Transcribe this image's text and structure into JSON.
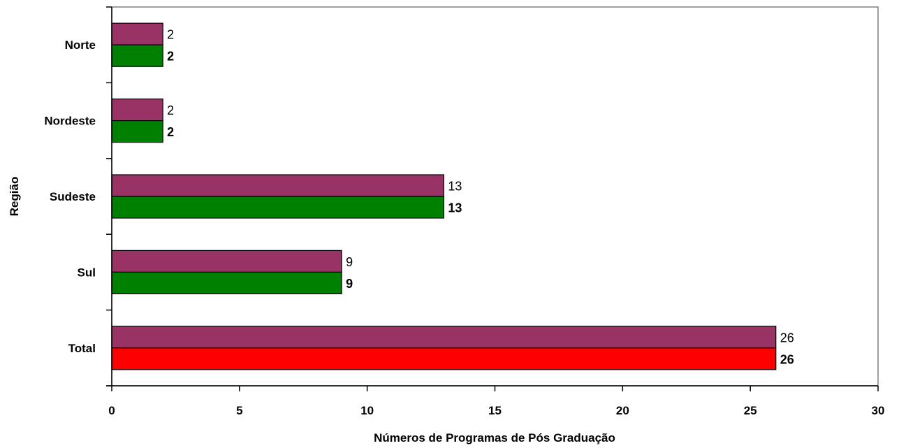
{
  "chart_data": {
    "type": "bar",
    "orientation": "horizontal",
    "categories": [
      "Norte",
      "Nordeste",
      "Sudeste",
      "Sul",
      "Total"
    ],
    "series": [
      {
        "values": [
          2,
          2,
          13,
          9,
          26
        ],
        "color": "#993366",
        "label_bold": false
      },
      {
        "values": [
          2,
          2,
          13,
          9,
          26
        ],
        "colors": [
          "#008000",
          "#008000",
          "#008000",
          "#008000",
          "#ff0000"
        ],
        "label_bold": true
      }
    ],
    "xlabel": "Números de Programas de Pós Graduação",
    "ylabel": "Região",
    "xlim": [
      0,
      30
    ],
    "xticks": [
      0,
      5,
      10,
      15,
      20,
      25,
      30
    ],
    "grid": false,
    "legend": "none"
  }
}
